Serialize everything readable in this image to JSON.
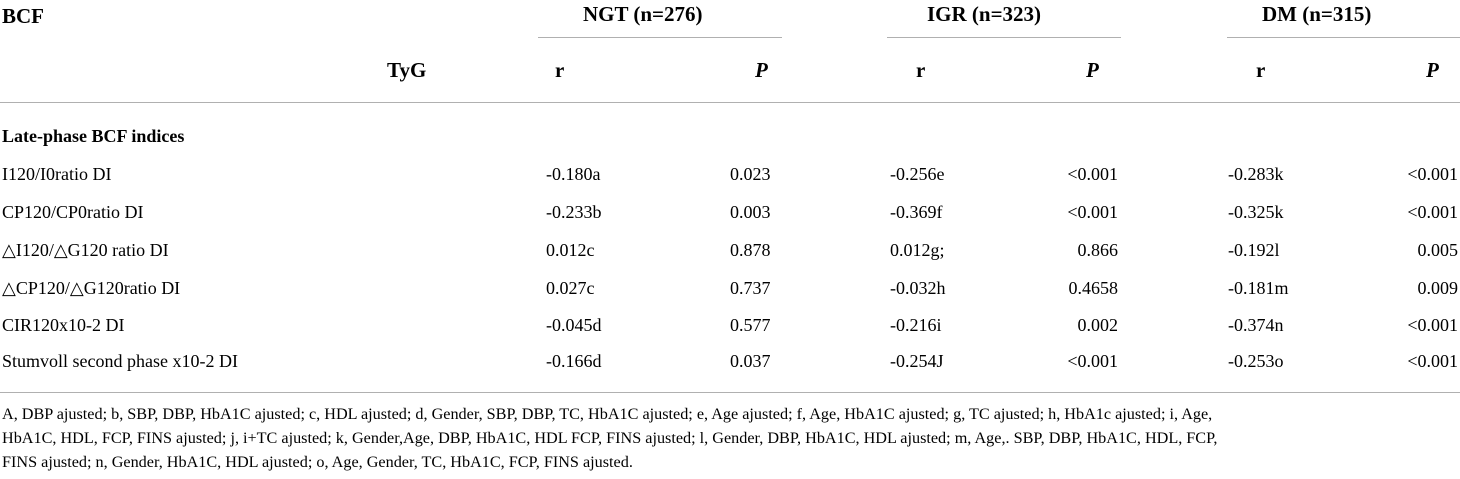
{
  "header": {
    "bcf": "BCF",
    "tyg": "TyG",
    "groups": [
      {
        "label": "NGT (n=276)"
      },
      {
        "label": "IGR (n=323)"
      },
      {
        "label": "DM (n=315)"
      }
    ],
    "r_label": "r",
    "p_label": "P"
  },
  "section_title": "Late-phase BCF indices",
  "rows": [
    {
      "label": "I120/I0ratio DI",
      "ngt_r": "-0.180a",
      "ngt_p": "0.023",
      "igr_r": "-0.256e",
      "igr_p": "<0.001",
      "dm_r": "-0.283k",
      "dm_p": "<0.001"
    },
    {
      "label": "CP120/CP0ratio DI",
      "ngt_r": "-0.233b",
      "ngt_p": "0.003",
      "igr_r": "-0.369f",
      "igr_p": "<0.001",
      "dm_r": "-0.325k",
      "dm_p": "<0.001"
    },
    {
      "label": "△I120/△G120 ratio DI",
      "ngt_r": "0.012c",
      "ngt_p": "0.878",
      "igr_r": "0.012g;",
      "igr_p": "0.866",
      "dm_r": "-0.192l",
      "dm_p": "0.005"
    },
    {
      "label": "△CP120/△G120ratio DI",
      "ngt_r": "0.027c",
      "ngt_p": "0.737",
      "igr_r": "-0.032h",
      "igr_p": "0.4658",
      "dm_r": "-0.181m",
      "dm_p": "0.009"
    },
    {
      "label": "CIR120x10-2 DI",
      "ngt_r": "-0.045d",
      "ngt_p": "0.577",
      "igr_r": "-0.216i",
      "igr_p": "0.002",
      "dm_r": "-0.374n",
      "dm_p": "<0.001"
    },
    {
      "label": "Stumvoll second phase x10-2 DI",
      "ngt_r": "-0.166d",
      "ngt_p": "0.037",
      "igr_r": "-0.254J",
      "igr_p": "<0.001",
      "dm_r": "-0.253o",
      "dm_p": "<0.001"
    }
  ],
  "footnote_lines": [
    "A, DBP ajusted; b, SBP, DBP, HbA1C ajusted; c, HDL ajusted; d, Gender, SBP, DBP, TC, HbA1C ajusted; e, Age ajusted; f, Age, HbA1C ajusted; g, TC ajusted; h, HbA1c ajusted; i, Age,",
    "HbA1C, HDL, FCP, FINS ajusted; j, i+TC ajusted; k, Gender,Age, DBP, HbA1C, HDL FCP, FINS ajusted; l, Gender, DBP, HbA1C, HDL ajusted; m, Age,. SBP, DBP, HbA1C, HDL, FCP,",
    "FINS ajusted; n, Gender, HbA1C, HDL ajusted; o, Age, Gender, TC, HbA1C, FCP, FINS ajusted."
  ]
}
